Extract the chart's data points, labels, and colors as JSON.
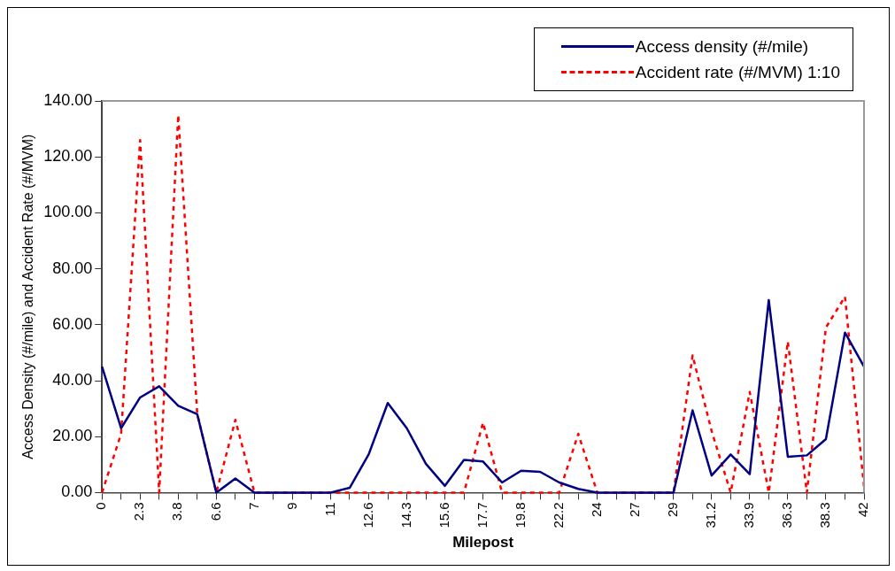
{
  "chart_data": {
    "type": "line",
    "xlabel": "Milepost",
    "ylabel": "Access Density (#/mile) and Accident Rate (#/MVM)",
    "categories": [
      "0",
      null,
      "2.3",
      null,
      "3.8",
      null,
      "6.6",
      null,
      "7",
      null,
      "9",
      null,
      "11",
      null,
      "12.6",
      null,
      "14.3",
      null,
      "15.6",
      null,
      "17.7",
      null,
      "19.8",
      null,
      "22.2",
      null,
      "24",
      null,
      "27",
      null,
      "29",
      null,
      "31.2",
      null,
      "33.9",
      null,
      "36.3",
      null,
      "38.3",
      null,
      "42"
    ],
    "series": [
      {
        "name": "Access density (#/mile)",
        "color": "#000080",
        "line_style": "solid",
        "values": [
          45,
          23,
          34,
          38,
          31,
          28,
          0,
          5,
          0,
          0,
          0,
          0,
          0,
          1.7,
          13.7,
          32,
          23,
          10.3,
          2.4,
          11.7,
          11.1,
          3.6,
          7.8,
          7.4,
          3.6,
          1.3,
          0,
          0,
          0,
          0,
          0,
          29.4,
          6.1,
          13.6,
          6.6,
          68.8,
          12.8,
          13.3,
          19.1,
          57.2,
          45
        ]
      },
      {
        "name": "Accident rate (#/MVM) 1:10",
        "color": "#ff0000",
        "line_style": "dashed",
        "values": [
          0,
          21,
          126,
          0,
          135,
          28,
          0,
          26,
          0,
          0,
          0,
          0,
          0,
          0,
          0,
          0,
          0,
          0,
          0,
          0,
          25,
          0,
          0,
          0,
          0,
          21,
          0,
          0,
          0,
          0,
          0,
          49,
          22,
          0,
          36,
          0,
          54,
          0,
          59,
          70,
          2
        ]
      }
    ],
    "ylim": [
      0,
      140
    ],
    "yticks": [
      {
        "value": 0,
        "label": "0.00"
      },
      {
        "value": 20,
        "label": "20.00"
      },
      {
        "value": 40,
        "label": "40.00"
      },
      {
        "value": 60,
        "label": "60.00"
      },
      {
        "value": 80,
        "label": "80.00"
      },
      {
        "value": 100,
        "label": "100.00"
      },
      {
        "value": 120,
        "label": "120.00"
      },
      {
        "value": 140,
        "label": "140.00"
      }
    ],
    "grid": false,
    "legend": "top right",
    "marker": "none"
  }
}
